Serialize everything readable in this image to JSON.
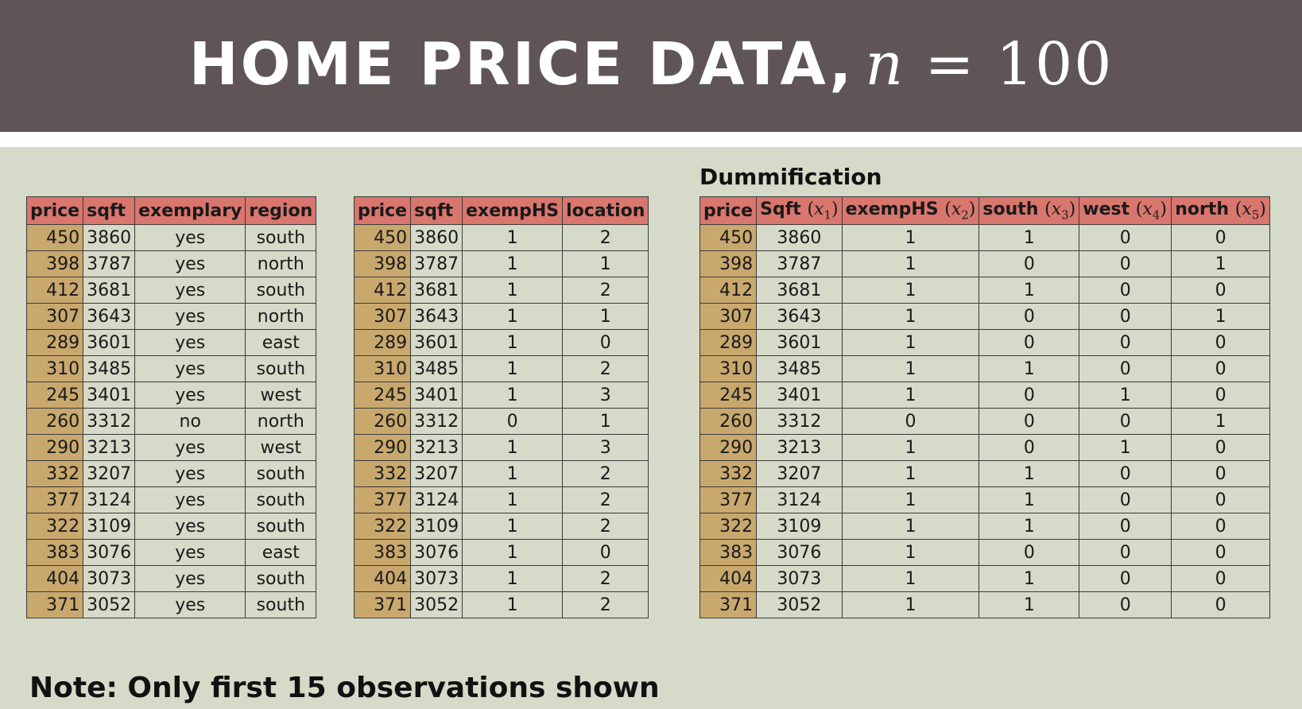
{
  "title": {
    "main": "HOME PRICE DATA,",
    "math": "n = 100",
    "math_var": "n",
    "math_rest": " = 100"
  },
  "original_table": {
    "columns": [
      "price",
      "sqft",
      "exemplary",
      "region"
    ],
    "rows": [
      [
        "450",
        "3860",
        "yes",
        "south"
      ],
      [
        "398",
        "3787",
        "yes",
        "north"
      ],
      [
        "412",
        "3681",
        "yes",
        "south"
      ],
      [
        "307",
        "3643",
        "yes",
        "north"
      ],
      [
        "289",
        "3601",
        "yes",
        "east"
      ],
      [
        "310",
        "3485",
        "yes",
        "south"
      ],
      [
        "245",
        "3401",
        "yes",
        "west"
      ],
      [
        "260",
        "3312",
        "no",
        "north"
      ],
      [
        "290",
        "3213",
        "yes",
        "west"
      ],
      [
        "332",
        "3207",
        "yes",
        "south"
      ],
      [
        "377",
        "3124",
        "yes",
        "south"
      ],
      [
        "322",
        "3109",
        "yes",
        "south"
      ],
      [
        "383",
        "3076",
        "yes",
        "east"
      ],
      [
        "404",
        "3073",
        "yes",
        "south"
      ],
      [
        "371",
        "3052",
        "yes",
        "south"
      ]
    ]
  },
  "encoded_table": {
    "columns": [
      "price",
      "sqft",
      "exempHS",
      "location"
    ],
    "rows": [
      [
        "450",
        "3860",
        "1",
        "2"
      ],
      [
        "398",
        "3787",
        "1",
        "1"
      ],
      [
        "412",
        "3681",
        "1",
        "2"
      ],
      [
        "307",
        "3643",
        "1",
        "1"
      ],
      [
        "289",
        "3601",
        "1",
        "0"
      ],
      [
        "310",
        "3485",
        "1",
        "2"
      ],
      [
        "245",
        "3401",
        "1",
        "3"
      ],
      [
        "260",
        "3312",
        "0",
        "1"
      ],
      [
        "290",
        "3213",
        "1",
        "3"
      ],
      [
        "332",
        "3207",
        "1",
        "2"
      ],
      [
        "377",
        "3124",
        "1",
        "2"
      ],
      [
        "322",
        "3109",
        "1",
        "2"
      ],
      [
        "383",
        "3076",
        "1",
        "0"
      ],
      [
        "404",
        "3073",
        "1",
        "2"
      ],
      [
        "371",
        "3052",
        "1",
        "2"
      ]
    ]
  },
  "dummy_table": {
    "heading": "Dummification",
    "columns": [
      {
        "name": "price",
        "var": "",
        "sub": ""
      },
      {
        "name": "Sqft ",
        "var": "x",
        "sub": "1"
      },
      {
        "name": "exempHS ",
        "var": "x",
        "sub": "2"
      },
      {
        "name": "south ",
        "var": "x",
        "sub": "3"
      },
      {
        "name": "west ",
        "var": "x",
        "sub": "4"
      },
      {
        "name": "north ",
        "var": "x",
        "sub": "5"
      }
    ],
    "rows": [
      [
        "450",
        "3860",
        "1",
        "1",
        "0",
        "0"
      ],
      [
        "398",
        "3787",
        "1",
        "0",
        "0",
        "1"
      ],
      [
        "412",
        "3681",
        "1",
        "1",
        "0",
        "0"
      ],
      [
        "307",
        "3643",
        "1",
        "0",
        "0",
        "1"
      ],
      [
        "289",
        "3601",
        "1",
        "0",
        "0",
        "0"
      ],
      [
        "310",
        "3485",
        "1",
        "1",
        "0",
        "0"
      ],
      [
        "245",
        "3401",
        "1",
        "0",
        "1",
        "0"
      ],
      [
        "260",
        "3312",
        "0",
        "0",
        "0",
        "1"
      ],
      [
        "290",
        "3213",
        "1",
        "0",
        "1",
        "0"
      ],
      [
        "332",
        "3207",
        "1",
        "1",
        "0",
        "0"
      ],
      [
        "377",
        "3124",
        "1",
        "1",
        "0",
        "0"
      ],
      [
        "322",
        "3109",
        "1",
        "1",
        "0",
        "0"
      ],
      [
        "383",
        "3076",
        "1",
        "0",
        "0",
        "0"
      ],
      [
        "404",
        "3073",
        "1",
        "1",
        "0",
        "0"
      ],
      [
        "371",
        "3052",
        "1",
        "1",
        "0",
        "0"
      ]
    ]
  },
  "note": "Note: Only first 15 observations shown",
  "colors": {
    "header_bg": "#5f5557",
    "content_bg": "#d5dbc8",
    "header_cell": "#d9766e",
    "price_cell": "#c9a86e"
  }
}
